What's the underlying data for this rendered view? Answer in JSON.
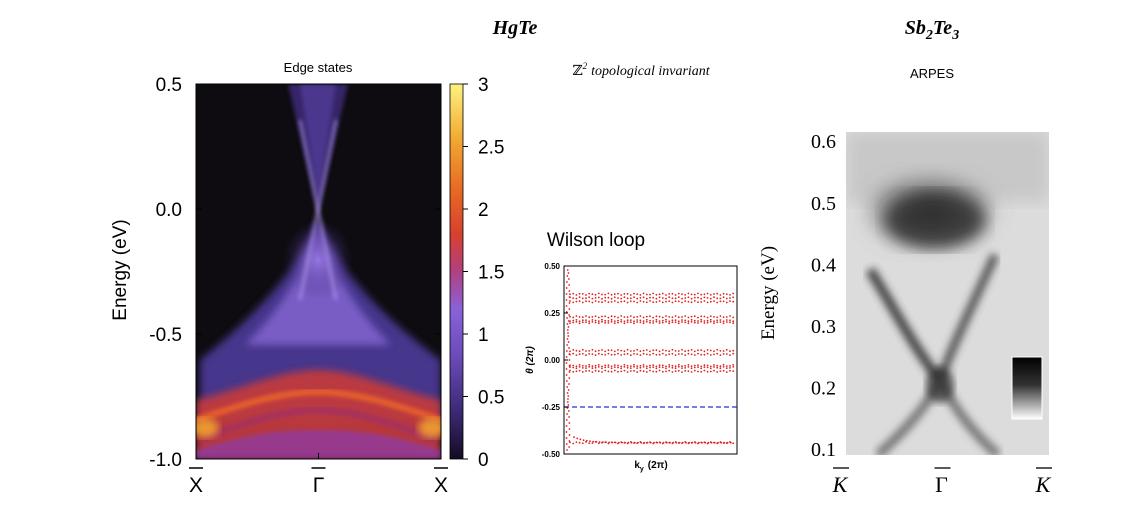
{
  "titles": {
    "hgte": "HgTe",
    "sb2te3_base1": "Sb",
    "sb2te3_sub1": "2",
    "sb2te3_base2": "Te",
    "sb2te3_sub2": "3",
    "z2_symbol": "ℤ",
    "z2_sup": "2",
    "z2_text": "topological invariant",
    "arpes": "ARPES"
  },
  "chart_data": [
    {
      "type": "heatmap",
      "title": "Edge states",
      "ylabel": "Energy (eV)",
      "xlabel": "",
      "ylim": [
        -1.0,
        0.5
      ],
      "yticks": [
        "0.5",
        "0.0",
        "-0.5",
        "-1.0"
      ],
      "ytick_values": [
        0.5,
        0.0,
        -0.5,
        -1.0
      ],
      "xticks": [
        "X",
        "Γ",
        "X"
      ],
      "colorbar": {
        "range": [
          0,
          3
        ],
        "ticks": [
          "3",
          "2.5",
          "2",
          "1.5",
          "1",
          "0.5",
          "0"
        ],
        "tick_values": [
          3,
          2.5,
          2,
          1.5,
          1,
          0.5,
          0
        ],
        "colors": [
          "#1a0a2e",
          "#5a3aa0",
          "#8a5ad0",
          "#c03a5a",
          "#e06a2a",
          "#f0b030",
          "#fff080"
        ]
      },
      "features": {
        "dirac_point_energy": -0.07,
        "valence_band_top": -0.72,
        "valence_band_bottom": -0.98
      }
    },
    {
      "type": "scatter",
      "title": "Wilson loop",
      "xlabel_base": "k",
      "xlabel_sub": "y",
      "xlabel_rest": "(2π)",
      "ylabel": "θ (2π)",
      "ylim": [
        -0.5,
        0.5
      ],
      "yticks": [
        "0.50",
        "0.25",
        "0.00",
        "-0.25",
        "-0.50"
      ],
      "ytick_values": [
        0.5,
        0.25,
        0.0,
        -0.25,
        -0.5
      ],
      "series": [
        {
          "y": [
            0.35
          ],
          "style": "red-dotted"
        },
        {
          "y": [
            0.33
          ],
          "style": "red-dotted"
        },
        {
          "y": [
            0.31
          ],
          "style": "red-dotted"
        },
        {
          "y": [
            0.23
          ],
          "style": "red-dotted"
        },
        {
          "y": [
            0.21
          ],
          "style": "red-dotted"
        },
        {
          "y": [
            0.05
          ],
          "style": "red-dotted"
        },
        {
          "y": [
            0.03
          ],
          "style": "red-dotted"
        },
        {
          "y": [
            -0.03
          ],
          "style": "red-dotted"
        },
        {
          "y": [
            -0.06
          ],
          "style": "red-dotted"
        },
        {
          "y": [
            -0.44
          ],
          "style": "red-dotted"
        }
      ],
      "reference_line": -0.25,
      "colors": {
        "points": "#e02020",
        "reference": "#2030d0"
      }
    },
    {
      "type": "heatmap",
      "title": "",
      "ylabel": "Energy (eV)",
      "ylim": [
        0.1,
        0.6
      ],
      "yticks": [
        "0.6",
        "0.5",
        "0.4",
        "0.3",
        "0.2",
        "0.1"
      ],
      "ytick_values": [
        0.6,
        0.5,
        0.4,
        0.3,
        0.2,
        0.1
      ],
      "xticks": [
        "K",
        "Γ",
        "K"
      ],
      "features": {
        "dirac_point_energy": 0.22
      },
      "colors": {
        "background": "#e8e8e8",
        "bands": "#3a3a3a"
      }
    }
  ]
}
